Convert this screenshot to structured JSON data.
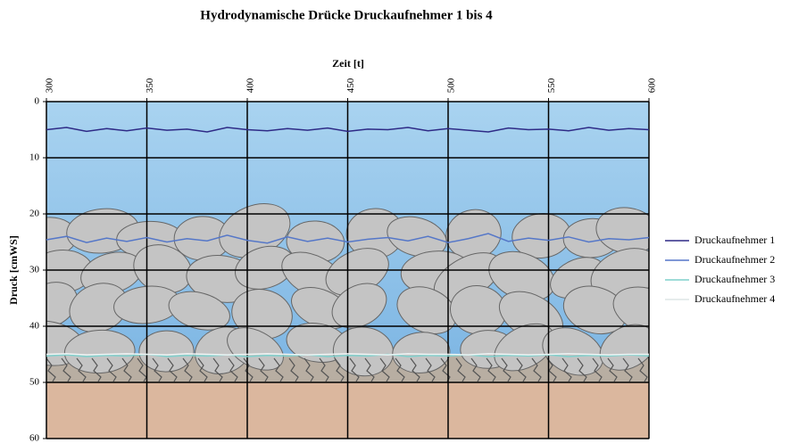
{
  "chart_data": {
    "type": "line",
    "title": "Hydrodynamische Drücke Druckaufnehmer 1 bis 4",
    "x_label": "Zeit [t]",
    "y_label": "Druck [cmWS]",
    "x": [
      300,
      310,
      320,
      330,
      340,
      350,
      360,
      370,
      380,
      390,
      400,
      410,
      420,
      430,
      440,
      450,
      460,
      470,
      480,
      490,
      500,
      510,
      520,
      530,
      540,
      550,
      560,
      570,
      580,
      590,
      600
    ],
    "series": [
      {
        "name": "Druckaufnehmer 1",
        "color": "#2e2a86",
        "values": [
          5.0,
          4.6,
          5.3,
          4.8,
          5.2,
          4.7,
          5.1,
          4.9,
          5.4,
          4.6,
          5.0,
          5.2,
          4.8,
          5.1,
          4.7,
          5.3,
          4.9,
          5.0,
          4.6,
          5.2,
          4.8,
          5.1,
          5.4,
          4.7,
          5.0,
          4.9,
          5.2,
          4.6,
          5.1,
          4.8,
          5.0
        ]
      },
      {
        "name": "Druckaufnehmer 2",
        "color": "#5577c8",
        "values": [
          24.6,
          24.0,
          25.1,
          24.3,
          24.9,
          24.2,
          25.0,
          24.4,
          24.8,
          23.8,
          24.7,
          25.2,
          24.1,
          24.9,
          24.3,
          25.0,
          24.5,
          24.2,
          24.8,
          24.0,
          25.1,
          24.4,
          23.5,
          24.9,
          24.3,
          24.7,
          24.1,
          25.0,
          24.4,
          24.6,
          24.2
        ]
      },
      {
        "name": "Druckaufnehmer 3",
        "color": "#7fd0cc",
        "values": [
          45.3,
          45.1,
          45.4,
          45.2,
          45.3,
          45.0,
          45.4,
          45.2,
          45.3,
          45.1,
          45.4,
          45.2,
          45.3,
          45.1,
          45.4,
          45.2,
          45.3,
          45.0,
          45.4,
          45.2,
          45.3,
          45.1,
          45.4,
          45.2,
          45.3,
          45.1,
          45.4,
          45.2,
          45.3,
          45.1,
          45.3
        ]
      },
      {
        "name": "Druckaufnehmer 4",
        "color": "#eef4f4",
        "values": [
          45.0,
          44.9,
          45.1,
          45.0,
          44.9,
          45.0,
          45.1,
          44.9,
          45.0,
          45.1,
          45.0,
          44.9,
          45.0,
          45.1,
          45.0,
          44.9,
          45.0,
          45.1,
          44.9,
          45.0,
          45.0,
          45.1,
          44.9,
          45.0,
          45.1,
          45.0,
          44.9,
          45.0,
          45.1,
          45.0,
          45.0
        ]
      }
    ],
    "xlim": [
      300,
      600
    ],
    "xticks": [
      300,
      350,
      400,
      450,
      500,
      550,
      600
    ],
    "ylim": [
      0,
      60
    ],
    "yticks": [
      0,
      10,
      20,
      30,
      40,
      50,
      60
    ],
    "y_inverted": true,
    "x_axis_position": "top",
    "grid": true,
    "legend": "right"
  }
}
